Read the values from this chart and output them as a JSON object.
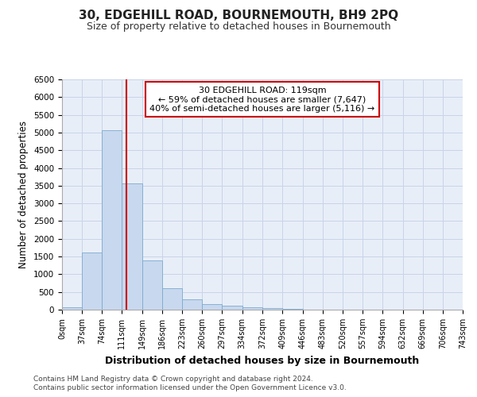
{
  "title": "30, EDGEHILL ROAD, BOURNEMOUTH, BH9 2PQ",
  "subtitle": "Size of property relative to detached houses in Bournemouth",
  "xlabel": "Distribution of detached houses by size in Bournemouth",
  "ylabel": "Number of detached properties",
  "footer_line1": "Contains HM Land Registry data © Crown copyright and database right 2024.",
  "footer_line2": "Contains public sector information licensed under the Open Government Licence v3.0.",
  "bin_edges": [
    0,
    37,
    74,
    111,
    149,
    186,
    223,
    260,
    297,
    334,
    372,
    409,
    446,
    483,
    520,
    557,
    594,
    632,
    669,
    706,
    743
  ],
  "bar_heights": [
    75,
    1625,
    5075,
    3575,
    1400,
    600,
    300,
    150,
    110,
    75,
    50,
    30,
    0,
    0,
    0,
    0,
    0,
    0,
    0,
    0
  ],
  "bar_color": "#c8d8ee",
  "bar_edge_color": "#7aaad0",
  "grid_color": "#c8d4e8",
  "background_color": "#e8eef8",
  "vline_x": 119,
  "vline_color": "#cc0000",
  "annotation_text": "30 EDGEHILL ROAD: 119sqm\n← 59% of detached houses are smaller (7,647)\n40% of semi-detached houses are larger (5,116) →",
  "annotation_box_color": "#ffffff",
  "annotation_border_color": "#cc0000",
  "ylim": [
    0,
    6500
  ],
  "yticks": [
    0,
    500,
    1000,
    1500,
    2000,
    2500,
    3000,
    3500,
    4000,
    4500,
    5000,
    5500,
    6000,
    6500
  ],
  "tick_labels": [
    "0sqm",
    "37sqm",
    "74sqm",
    "111sqm",
    "149sqm",
    "186sqm",
    "223sqm",
    "260sqm",
    "297sqm",
    "334sqm",
    "372sqm",
    "409sqm",
    "446sqm",
    "483sqm",
    "520sqm",
    "557sqm",
    "594sqm",
    "632sqm",
    "669sqm",
    "706sqm",
    "743sqm"
  ]
}
